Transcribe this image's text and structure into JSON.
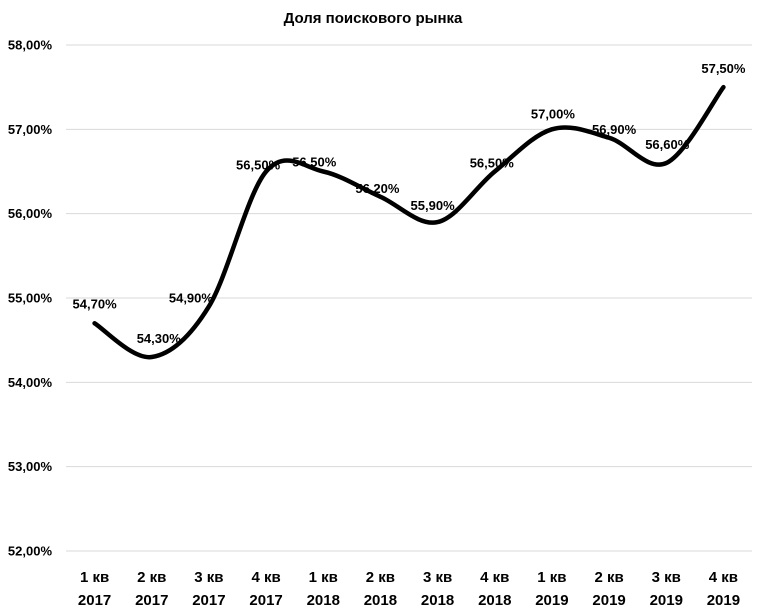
{
  "chart_data": {
    "type": "line",
    "title": "Доля поискового рынка",
    "categories": [
      [
        "1 кв",
        "2017"
      ],
      [
        "2 кв",
        "2017"
      ],
      [
        "3 кв",
        "2017"
      ],
      [
        "4 кв",
        "2017"
      ],
      [
        "1 кв",
        "2018"
      ],
      [
        "2 кв",
        "2018"
      ],
      [
        "3 кв",
        "2018"
      ],
      [
        "4 кв",
        "2018"
      ],
      [
        "1 кв",
        "2019"
      ],
      [
        "2 кв",
        "2019"
      ],
      [
        "3 кв",
        "2019"
      ],
      [
        "4 кв",
        "2019"
      ]
    ],
    "values": [
      54.7,
      54.3,
      54.9,
      56.5,
      56.5,
      56.2,
      55.9,
      56.5,
      57.0,
      56.9,
      56.6,
      57.5
    ],
    "data_labels": [
      "54,70%",
      "54,30%",
      "54,90%",
      "56,50%",
      "56,50%",
      "56,20%",
      "55,90%",
      "56,50%",
      "57,00%",
      "56,90%",
      "56,60%",
      "57,50%"
    ],
    "ylim": [
      52,
      58
    ],
    "yticks": [
      "52,00%",
      "53,00%",
      "54,00%",
      "55,00%",
      "56,00%",
      "57,00%",
      "58,00%"
    ],
    "grid": true,
    "line_color": "#000000",
    "smooth": true,
    "legend": "none"
  }
}
